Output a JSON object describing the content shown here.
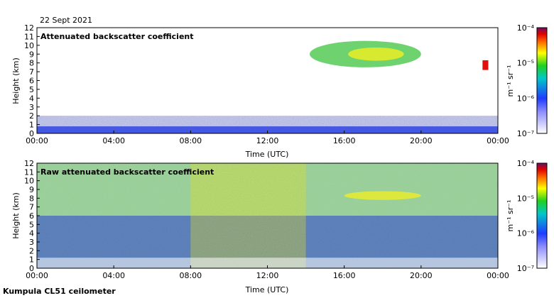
{
  "header": {
    "date": "22 Sept 2021"
  },
  "footer": {
    "station": "Kumpula CL51 ceilometer"
  },
  "chart_data": [
    {
      "type": "heatmap",
      "title": "Attenuated backscatter coefficient",
      "xlabel": "Time (UTC)",
      "ylabel": "Height (km)",
      "x_ticks": [
        "00:00",
        "04:00",
        "08:00",
        "12:00",
        "16:00",
        "20:00",
        "00:00"
      ],
      "y_ticks": [
        "0",
        "1",
        "2",
        "3",
        "4",
        "5",
        "6",
        "7",
        "8",
        "9",
        "10",
        "11",
        "12"
      ],
      "ylim": [
        0,
        12
      ],
      "xlim_hours": [
        0,
        24
      ],
      "colorbar": {
        "scale": "log",
        "range": [
          1e-07,
          0.0001
        ],
        "labels": [
          "10⁻⁷",
          "10⁻⁶",
          "10⁻⁵",
          "10⁻⁴"
        ],
        "unit": "m⁻¹ sr⁻¹"
      },
      "features": {
        "boundary_layer_top_km": 2.0,
        "high_cloud": {
          "time_hours": [
            14.2,
            20.0
          ],
          "height_km": [
            7.5,
            10.5
          ]
        },
        "late_cloud": {
          "time_hours": [
            23.2,
            23.5
          ],
          "height_km": [
            7.2,
            8.3
          ]
        }
      }
    },
    {
      "type": "heatmap",
      "title": "Raw attenuated backscatter coefficient",
      "xlabel": "Time (UTC)",
      "ylabel": "Height (km)",
      "x_ticks": [
        "00:00",
        "04:00",
        "08:00",
        "12:00",
        "16:00",
        "20:00",
        "00:00"
      ],
      "y_ticks": [
        "0",
        "1",
        "2",
        "3",
        "4",
        "5",
        "6",
        "7",
        "8",
        "9",
        "10",
        "11",
        "12"
      ],
      "ylim": [
        0,
        12
      ],
      "xlim_hours": [
        0,
        24
      ],
      "colorbar": {
        "scale": "log",
        "range": [
          1e-07,
          0.0001
        ],
        "labels": [
          "10⁻⁷",
          "10⁻⁶",
          "10⁻⁵",
          "10⁻⁴"
        ],
        "unit": "m⁻¹ sr⁻¹"
      },
      "features": {
        "noise_band_hours": [
          8.0,
          14.0
        ],
        "high_cloud": {
          "time_hours": [
            16.0,
            20.0
          ],
          "height_km": [
            7.8,
            8.8
          ]
        }
      }
    }
  ],
  "colors": {
    "low": "#ffffff",
    "blue": "#2f3fe0",
    "green": "#2fc030",
    "yellow": "#f3f020",
    "red": "#e01010",
    "purple": "#6a0f5e"
  }
}
